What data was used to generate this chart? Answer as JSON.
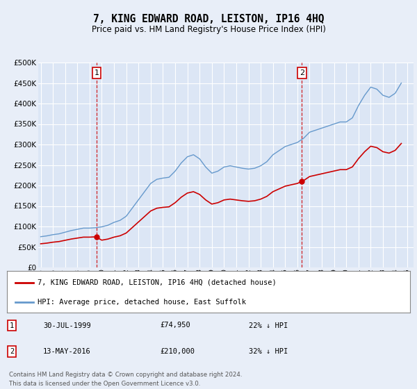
{
  "title": "7, KING EDWARD ROAD, LEISTON, IP16 4HQ",
  "subtitle": "Price paid vs. HM Land Registry's House Price Index (HPI)",
  "background_color": "#e8eef8",
  "plot_bg": "#dce6f5",
  "grid_color": "#c8d4e8",
  "title_fontsize": 10.5,
  "subtitle_fontsize": 8.5,
  "transactions": [
    {
      "date_num": 1999.58,
      "price": 74950,
      "label": "1",
      "date_str": "30-JUL-1999",
      "price_str": "£74,950",
      "pct": "22% ↓ HPI"
    },
    {
      "date_num": 2016.37,
      "price": 210000,
      "label": "2",
      "date_str": "13-MAY-2016",
      "price_str": "£210,000",
      "pct": "32% ↓ HPI"
    }
  ],
  "legend_line1": "7, KING EDWARD ROAD, LEISTON, IP16 4HQ (detached house)",
  "legend_line2": "HPI: Average price, detached house, East Suffolk",
  "footnote1": "Contains HM Land Registry data © Crown copyright and database right 2024.",
  "footnote2": "This data is licensed under the Open Government Licence v3.0.",
  "hpi_color": "#6699cc",
  "price_color": "#cc0000",
  "ylim": [
    0,
    500000
  ],
  "xlim_start": 1994.8,
  "xlim_end": 2025.5,
  "hpi_years": [
    1995.0,
    1995.5,
    1996.0,
    1996.5,
    1997.0,
    1997.5,
    1998.0,
    1998.5,
    1999.0,
    1999.5,
    2000.0,
    2000.5,
    2001.0,
    2001.5,
    2002.0,
    2002.5,
    2003.0,
    2003.5,
    2004.0,
    2004.5,
    2005.0,
    2005.5,
    2006.0,
    2006.5,
    2007.0,
    2007.5,
    2008.0,
    2008.5,
    2009.0,
    2009.5,
    2010.0,
    2010.5,
    2011.0,
    2011.5,
    2012.0,
    2012.5,
    2013.0,
    2013.5,
    2014.0,
    2014.5,
    2015.0,
    2015.5,
    2016.0,
    2016.5,
    2017.0,
    2017.5,
    2018.0,
    2018.5,
    2019.0,
    2019.5,
    2020.0,
    2020.5,
    2021.0,
    2021.5,
    2022.0,
    2022.5,
    2023.0,
    2023.5,
    2024.0,
    2024.5
  ],
  "hpi_values": [
    75000,
    77000,
    80000,
    82000,
    86000,
    90000,
    93000,
    96000,
    96000,
    97000,
    99000,
    103000,
    110000,
    115000,
    125000,
    145000,
    165000,
    185000,
    205000,
    215000,
    218000,
    220000,
    235000,
    255000,
    270000,
    275000,
    265000,
    245000,
    230000,
    235000,
    245000,
    248000,
    245000,
    242000,
    240000,
    242000,
    248000,
    258000,
    275000,
    285000,
    295000,
    300000,
    305000,
    315000,
    330000,
    335000,
    340000,
    345000,
    350000,
    355000,
    355000,
    365000,
    395000,
    420000,
    440000,
    435000,
    420000,
    415000,
    425000,
    450000
  ]
}
